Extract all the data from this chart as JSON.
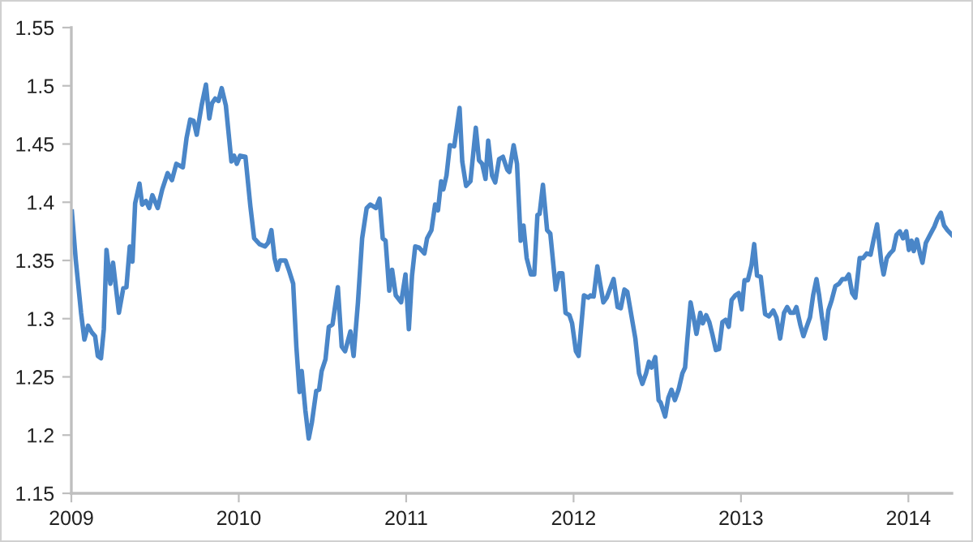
{
  "chart_data": {
    "type": "line",
    "xlim": [
      2009,
      2014.26
    ],
    "xticks": [
      2009,
      2010,
      2011,
      2012,
      2013,
      2014
    ],
    "ylim": [
      1.15,
      1.55
    ],
    "yticks": [
      {
        "value": 1.15,
        "label": "1.15"
      },
      {
        "value": 1.2,
        "label": "1.2"
      },
      {
        "value": 1.25,
        "label": "1.25"
      },
      {
        "value": 1.3,
        "label": "1.3"
      },
      {
        "value": 1.35,
        "label": "1.35"
      },
      {
        "value": 1.4,
        "label": "1.4"
      },
      {
        "value": 1.45,
        "label": "1.45"
      },
      {
        "value": 1.5,
        "label": "1.5"
      },
      {
        "value": 1.55,
        "label": "1.55"
      }
    ],
    "grid": false,
    "marker": "none",
    "line_style": "solid",
    "series": [
      {
        "color": "#4a86c8",
        "x": [
          2009.003,
          2009.026,
          2009.058,
          2009.078,
          2009.1,
          2009.123,
          2009.142,
          2009.158,
          2009.177,
          2009.194,
          2009.21,
          2009.233,
          2009.249,
          2009.284,
          2009.31,
          2009.329,
          2009.349,
          2009.365,
          2009.381,
          2009.407,
          2009.423,
          2009.446,
          2009.465,
          2009.484,
          2009.516,
          2009.543,
          2009.575,
          2009.601,
          2009.627,
          2009.666,
          2009.688,
          2009.71,
          2009.73,
          2009.749,
          2009.778,
          2009.804,
          2009.824,
          2009.84,
          2009.859,
          2009.879,
          2009.898,
          2009.923,
          2009.956,
          2009.972,
          2009.988,
          2010.008,
          2010.04,
          2010.069,
          2010.092,
          2010.124,
          2010.156,
          2010.175,
          2010.195,
          2010.214,
          2010.231,
          2010.247,
          2010.279,
          2010.301,
          2010.325,
          2010.344,
          2010.363,
          2010.376,
          2010.398,
          2010.418,
          2010.437,
          2010.463,
          2010.48,
          2010.495,
          2010.518,
          2010.538,
          2010.56,
          2010.592,
          2010.615,
          2010.635,
          2010.667,
          2010.686,
          2010.712,
          2010.737,
          2010.764,
          2010.786,
          2010.819,
          2010.841,
          2010.86,
          2010.877,
          2010.899,
          2010.916,
          2010.938,
          2010.97,
          2010.996,
          2011.016,
          2011.035,
          2011.054,
          2011.077,
          2011.109,
          2011.125,
          2011.151,
          2011.173,
          2011.19,
          2011.209,
          2011.222,
          2011.241,
          2011.261,
          2011.287,
          2011.319,
          2011.335,
          2011.358,
          2011.384,
          2011.416,
          2011.435,
          2011.454,
          2011.474,
          2011.49,
          2011.513,
          2011.532,
          2011.555,
          2011.578,
          2011.604,
          2011.616,
          2011.642,
          2011.662,
          2011.684,
          2011.701,
          2011.72,
          2011.745,
          2011.765,
          2011.784,
          2011.797,
          2011.817,
          2011.842,
          2011.861,
          2011.894,
          2011.914,
          2011.933,
          2011.952,
          2011.975,
          2011.991,
          2012.014,
          2012.03,
          2012.062,
          2012.088,
          2012.101,
          2012.12,
          2012.142,
          2012.159,
          2012.178,
          2012.198,
          2012.239,
          2012.263,
          2012.282,
          2012.304,
          2012.321,
          2012.369,
          2012.391,
          2012.411,
          2012.433,
          2012.45,
          2012.466,
          2012.488,
          2012.508,
          2012.52,
          2012.547,
          2012.566,
          2012.585,
          2012.605,
          2012.627,
          2012.65,
          2012.666,
          2012.679,
          2012.699,
          2012.718,
          2012.734,
          2012.757,
          2012.772,
          2012.792,
          2012.811,
          2012.83,
          2012.85,
          2012.869,
          2012.889,
          2012.908,
          2012.927,
          2012.944,
          2012.966,
          2012.986,
          2013.005,
          2013.021,
          2013.041,
          2013.063,
          2013.079,
          2013.096,
          2013.118,
          2013.144,
          2013.167,
          2013.193,
          2013.212,
          2013.234,
          2013.257,
          2013.276,
          2013.296,
          2013.315,
          2013.331,
          2013.354,
          2013.373,
          2013.392,
          2013.412,
          2013.431,
          2013.451,
          2013.467,
          2013.483,
          2013.503,
          2013.522,
          2013.542,
          2013.564,
          2013.586,
          2013.606,
          2013.625,
          2013.644,
          2013.664,
          2013.683,
          2013.709,
          2013.729,
          2013.751,
          2013.774,
          2013.794,
          2013.813,
          2013.838,
          2013.852,
          2013.871,
          2013.89,
          2013.91,
          2013.929,
          2013.949,
          2013.968,
          2013.987,
          2014.003,
          2014.019,
          2014.032,
          2014.051,
          2014.071,
          2014.084,
          2014.104,
          2014.129,
          2014.155,
          2014.174,
          2014.194,
          2014.213,
          2014.233,
          2014.259
        ],
        "values": [
          1.392,
          1.351,
          1.305,
          1.282,
          1.294,
          1.288,
          1.285,
          1.268,
          1.266,
          1.291,
          1.359,
          1.33,
          1.348,
          1.305,
          1.326,
          1.327,
          1.362,
          1.349,
          1.399,
          1.416,
          1.398,
          1.401,
          1.395,
          1.406,
          1.395,
          1.411,
          1.425,
          1.419,
          1.433,
          1.43,
          1.455,
          1.471,
          1.47,
          1.458,
          1.483,
          1.501,
          1.472,
          1.485,
          1.489,
          1.487,
          1.498,
          1.483,
          1.435,
          1.44,
          1.433,
          1.44,
          1.439,
          1.397,
          1.369,
          1.364,
          1.362,
          1.365,
          1.376,
          1.352,
          1.342,
          1.35,
          1.35,
          1.341,
          1.33,
          1.276,
          1.237,
          1.255,
          1.221,
          1.197,
          1.211,
          1.238,
          1.239,
          1.255,
          1.265,
          1.293,
          1.295,
          1.327,
          1.276,
          1.272,
          1.289,
          1.268,
          1.314,
          1.369,
          1.395,
          1.398,
          1.395,
          1.403,
          1.369,
          1.367,
          1.324,
          1.342,
          1.32,
          1.314,
          1.338,
          1.291,
          1.337,
          1.362,
          1.361,
          1.356,
          1.369,
          1.376,
          1.398,
          1.393,
          1.418,
          1.411,
          1.423,
          1.449,
          1.448,
          1.481,
          1.435,
          1.414,
          1.418,
          1.464,
          1.436,
          1.433,
          1.42,
          1.453,
          1.423,
          1.417,
          1.437,
          1.439,
          1.428,
          1.426,
          1.449,
          1.433,
          1.367,
          1.38,
          1.352,
          1.338,
          1.338,
          1.389,
          1.39,
          1.415,
          1.376,
          1.373,
          1.325,
          1.339,
          1.339,
          1.305,
          1.303,
          1.296,
          1.272,
          1.268,
          1.32,
          1.318,
          1.32,
          1.319,
          1.345,
          1.33,
          1.314,
          1.318,
          1.334,
          1.31,
          1.309,
          1.325,
          1.323,
          1.283,
          1.253,
          1.244,
          1.253,
          1.263,
          1.258,
          1.267,
          1.23,
          1.228,
          1.216,
          1.232,
          1.239,
          1.23,
          1.239,
          1.253,
          1.258,
          1.281,
          1.314,
          1.3,
          1.287,
          1.305,
          1.296,
          1.303,
          1.297,
          1.286,
          1.273,
          1.274,
          1.297,
          1.299,
          1.293,
          1.316,
          1.32,
          1.322,
          1.308,
          1.333,
          1.333,
          1.346,
          1.364,
          1.337,
          1.336,
          1.304,
          1.302,
          1.307,
          1.301,
          1.283,
          1.305,
          1.31,
          1.305,
          1.305,
          1.31,
          1.295,
          1.285,
          1.293,
          1.301,
          1.32,
          1.334,
          1.32,
          1.302,
          1.283,
          1.307,
          1.316,
          1.328,
          1.33,
          1.334,
          1.334,
          1.338,
          1.322,
          1.318,
          1.352,
          1.352,
          1.356,
          1.355,
          1.369,
          1.381,
          1.349,
          1.338,
          1.352,
          1.356,
          1.359,
          1.372,
          1.375,
          1.369,
          1.375,
          1.359,
          1.367,
          1.358,
          1.368,
          1.355,
          1.348,
          1.365,
          1.372,
          1.379,
          1.386,
          1.391,
          1.38,
          1.376,
          1.372
        ]
      }
    ]
  }
}
